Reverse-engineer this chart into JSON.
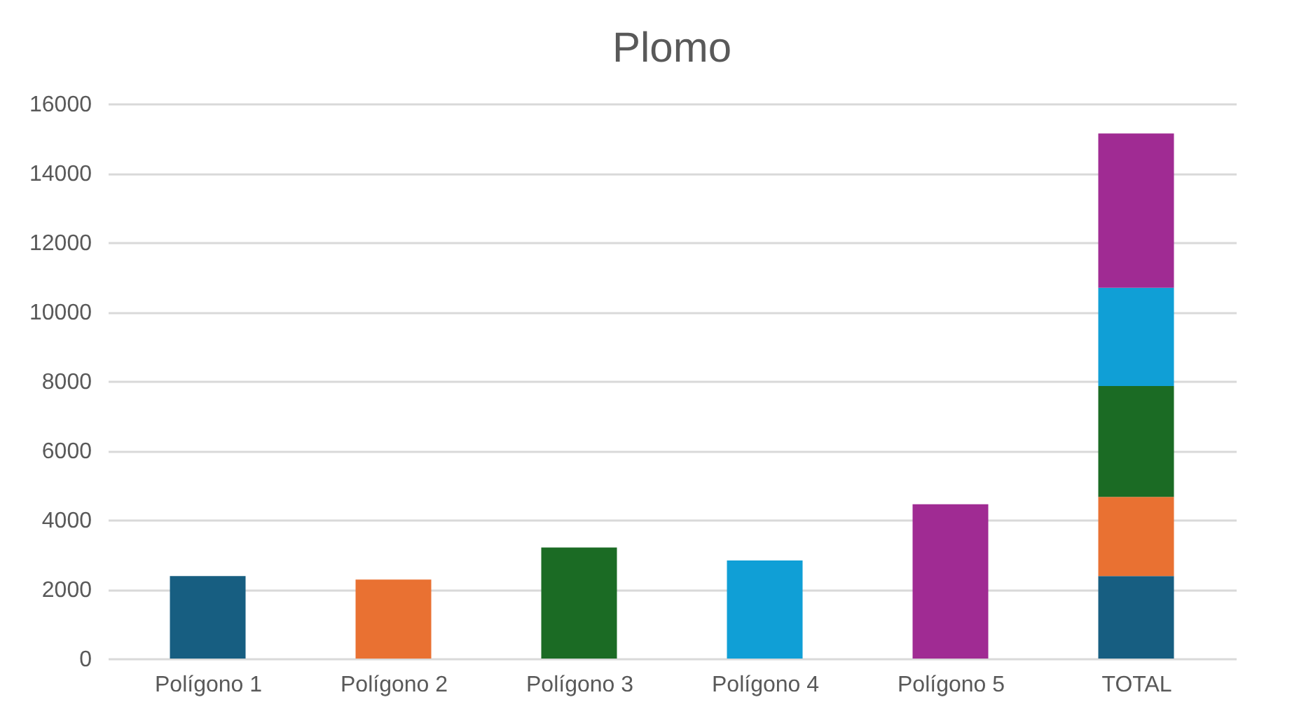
{
  "chart_data": {
    "type": "bar",
    "title": "Plomo",
    "stacked": true,
    "categories": [
      "Polígono 1",
      "Polígono 2",
      "Polígono 3",
      "Polígono 4",
      "Polígono 5",
      "TOTAL"
    ],
    "series": [
      {
        "color": "#175e81",
        "values": [
          2380,
          null,
          null,
          null,
          null,
          2380
        ]
      },
      {
        "color": "#e97132",
        "values": [
          null,
          2280,
          null,
          null,
          null,
          2280
        ]
      },
      {
        "color": "#1b6b24",
        "values": [
          null,
          null,
          3200,
          null,
          null,
          3200
        ]
      },
      {
        "color": "#109fd6",
        "values": [
          null,
          null,
          null,
          2830,
          null,
          2830
        ]
      },
      {
        "color": "#a02b93",
        "values": [
          null,
          null,
          null,
          null,
          4450,
          4450
        ]
      }
    ],
    "ylim": [
      0,
      16000
    ],
    "yticks": [
      0,
      2000,
      4000,
      6000,
      8000,
      10000,
      12000,
      14000,
      16000
    ],
    "grid": "y",
    "legend": false
  }
}
